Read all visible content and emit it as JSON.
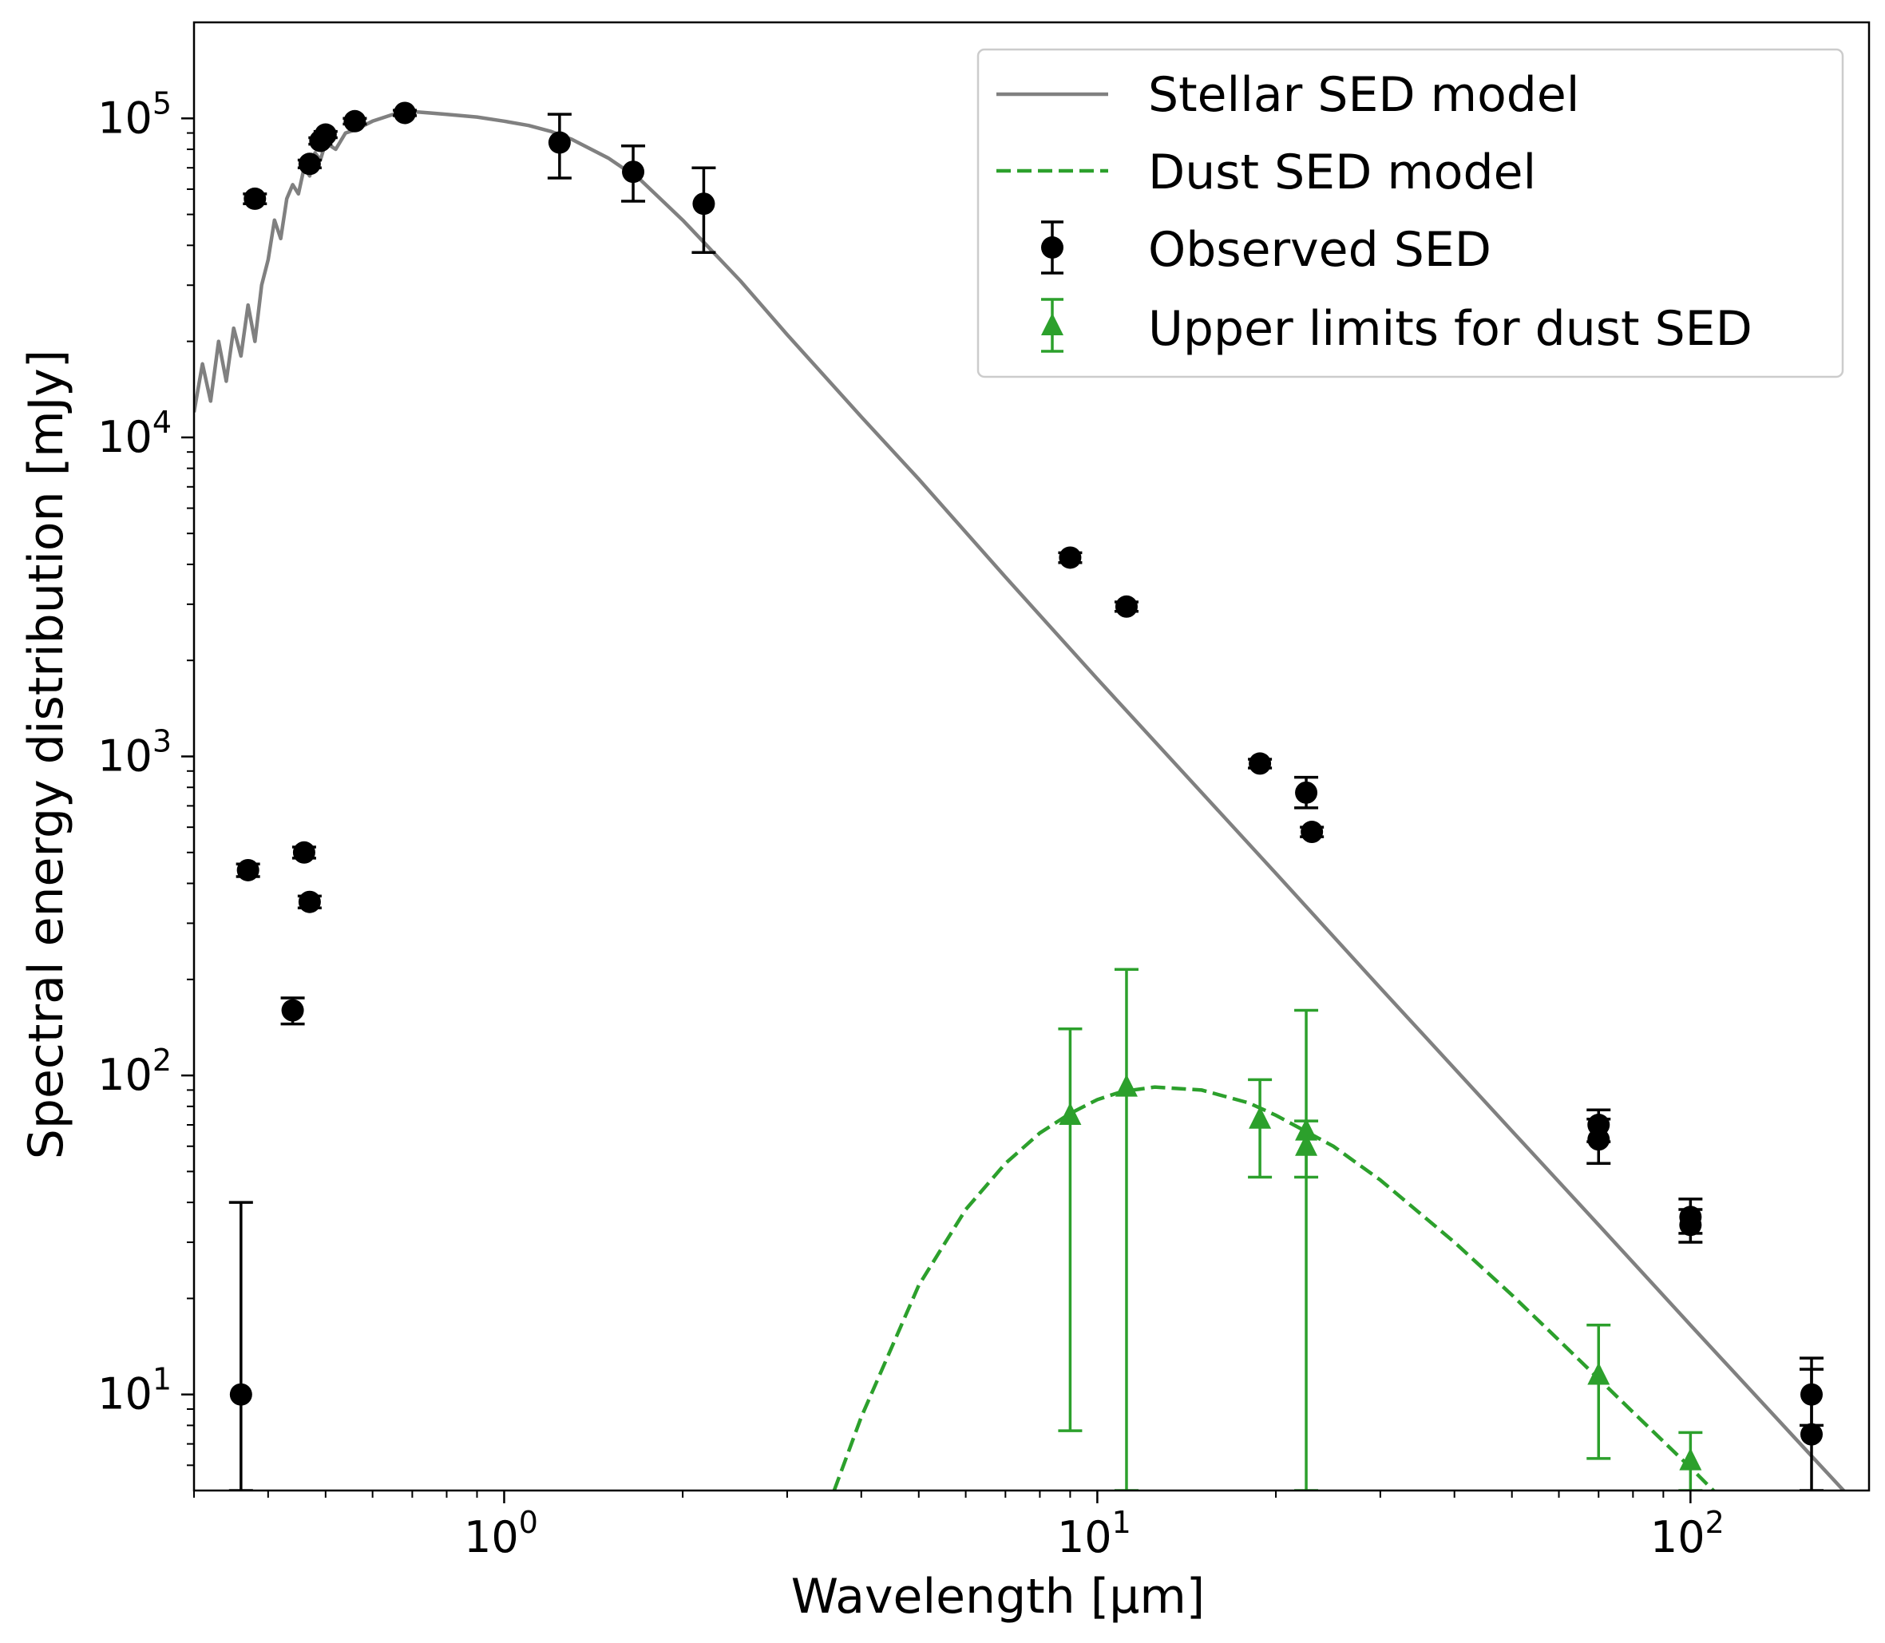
{
  "chart_data": {
    "type": "scatter",
    "title": "",
    "xlabel": "Wavelength [μm]",
    "ylabel": "Spectral energy distribution [mJy]",
    "xscale": "log",
    "yscale": "log",
    "xlim": [
      0.3,
      200
    ],
    "ylim": [
      5,
      200000
    ],
    "x_ticks": [
      {
        "value": 1,
        "base": "10",
        "exp": "0"
      },
      {
        "value": 10,
        "base": "10",
        "exp": "1"
      },
      {
        "value": 100,
        "base": "10",
        "exp": "2"
      }
    ],
    "y_ticks": [
      {
        "value": 10,
        "base": "10",
        "exp": "1"
      },
      {
        "value": 100,
        "base": "10",
        "exp": "2"
      },
      {
        "value": 1000,
        "base": "10",
        "exp": "3"
      },
      {
        "value": 10000,
        "base": "10",
        "exp": "4"
      },
      {
        "value": 100000,
        "base": "10",
        "exp": "5"
      }
    ],
    "legend": {
      "position": "top-right",
      "entries": [
        {
          "label": "Stellar SED model",
          "style": "line",
          "color": "#808080"
        },
        {
          "label": "Dust SED model",
          "style": "dashed",
          "color": "#2ca02c"
        },
        {
          "label": "Observed SED",
          "style": "circle-errorbar",
          "color": "#000000"
        },
        {
          "label": "Upper limits for dust SED",
          "style": "triangle-errorbar",
          "color": "#2ca02c"
        }
      ]
    },
    "series": [
      {
        "name": "Stellar SED model",
        "kind": "line",
        "color": "#808080",
        "x": [
          0.3,
          0.31,
          0.32,
          0.33,
          0.34,
          0.35,
          0.36,
          0.37,
          0.38,
          0.39,
          0.4,
          0.41,
          0.42,
          0.43,
          0.44,
          0.45,
          0.46,
          0.47,
          0.48,
          0.49,
          0.5,
          0.52,
          0.54,
          0.56,
          0.6,
          0.65,
          0.7,
          0.75,
          0.8,
          0.9,
          1.0,
          1.1,
          1.2,
          1.3,
          1.5,
          1.7,
          2.0,
          2.5,
          3,
          4,
          5,
          7,
          10,
          15,
          20,
          30,
          50,
          70,
          100,
          150,
          200
        ],
        "y": [
          12000,
          17000,
          13000,
          20000,
          15000,
          22000,
          18000,
          26000,
          20000,
          30000,
          36000,
          48000,
          42000,
          56000,
          62000,
          58000,
          70000,
          66000,
          78000,
          74000,
          84000,
          80000,
          90000,
          92000,
          98000,
          103000,
          105000,
          104000,
          103000,
          101000,
          98000,
          95000,
          91000,
          86000,
          75000,
          64000,
          48000,
          31000,
          21000,
          11600,
          7400,
          3650,
          1750,
          770,
          430,
          188,
          67,
          34,
          16.5,
          7.3,
          4.1
        ]
      },
      {
        "name": "Dust SED model",
        "kind": "dashed-line",
        "color": "#2ca02c",
        "x": [
          3.6,
          4,
          5,
          6,
          7,
          8,
          9,
          10,
          11,
          12.5,
          15,
          18,
          20,
          25,
          30,
          40,
          50,
          60,
          70,
          80,
          100,
          120
        ],
        "y": [
          5,
          8.5,
          22,
          38,
          53,
          66,
          76,
          84,
          89,
          92,
          90,
          82,
          75,
          60,
          47,
          30,
          20.5,
          14.8,
          11.2,
          8.8,
          5.9,
          4.2
        ]
      },
      {
        "name": "Observed SED",
        "kind": "errorbar-circle",
        "color": "#000000",
        "points": [
          {
            "x": 0.36,
            "y": 10,
            "ylo": 5,
            "yhi": 40
          },
          {
            "x": 0.37,
            "y": 440,
            "ylo": 420,
            "yhi": 460
          },
          {
            "x": 0.44,
            "y": 160,
            "ylo": 145,
            "yhi": 175
          },
          {
            "x": 0.46,
            "y": 500,
            "ylo": 480,
            "yhi": 520
          },
          {
            "x": 0.47,
            "y": 350,
            "ylo": 335,
            "yhi": 365
          },
          {
            "x": 0.38,
            "y": 56000,
            "ylo": 54000,
            "yhi": 58000
          },
          {
            "x": 0.47,
            "y": 72000,
            "ylo": 70000,
            "yhi": 74000
          },
          {
            "x": 0.49,
            "y": 85000,
            "ylo": 83000,
            "yhi": 87000
          },
          {
            "x": 0.5,
            "y": 89000,
            "ylo": 87000,
            "yhi": 91000
          },
          {
            "x": 0.56,
            "y": 98000,
            "ylo": 96000,
            "yhi": 100000
          },
          {
            "x": 0.68,
            "y": 104000,
            "ylo": 102000,
            "yhi": 106000
          },
          {
            "x": 1.24,
            "y": 84000,
            "ylo": 65000,
            "yhi": 103000
          },
          {
            "x": 1.65,
            "y": 68000,
            "ylo": 55000,
            "yhi": 82000
          },
          {
            "x": 2.17,
            "y": 54000,
            "ylo": 38000,
            "yhi": 70000
          },
          {
            "x": 9,
            "y": 4200,
            "ylo": 4050,
            "yhi": 4350
          },
          {
            "x": 11.2,
            "y": 2950,
            "ylo": 2850,
            "yhi": 3050
          },
          {
            "x": 18.8,
            "y": 950,
            "ylo": 920,
            "yhi": 980
          },
          {
            "x": 22.5,
            "y": 770,
            "ylo": 690,
            "yhi": 860
          },
          {
            "x": 23,
            "y": 580,
            "ylo": 560,
            "yhi": 600
          },
          {
            "x": 70,
            "y": 70,
            "ylo": 62,
            "yhi": 78
          },
          {
            "x": 70,
            "y": 63,
            "ylo": 53,
            "yhi": 73
          },
          {
            "x": 100,
            "y": 36,
            "ylo": 32,
            "yhi": 41
          },
          {
            "x": 100,
            "y": 34,
            "ylo": 30,
            "yhi": 38
          },
          {
            "x": 160,
            "y": 10,
            "ylo": 8,
            "yhi": 13
          },
          {
            "x": 160,
            "y": 7.5,
            "ylo": 5,
            "yhi": 12
          }
        ]
      },
      {
        "name": "Upper limits for dust SED",
        "kind": "errorbar-triangle",
        "color": "#2ca02c",
        "points": [
          {
            "x": 9,
            "y": 75,
            "ylo": 7.7,
            "yhi": 140
          },
          {
            "x": 11.2,
            "y": 92,
            "ylo": 5,
            "yhi": 215
          },
          {
            "x": 18.8,
            "y": 73,
            "ylo": 48,
            "yhi": 97
          },
          {
            "x": 22.5,
            "y": 67,
            "ylo": 48,
            "yhi": 72
          },
          {
            "x": 22.5,
            "y": 60,
            "ylo": 5,
            "yhi": 160
          },
          {
            "x": 70,
            "y": 11.5,
            "ylo": 6.3,
            "yhi": 16.5
          },
          {
            "x": 100,
            "y": 6.2,
            "ylo": 5,
            "yhi": 7.6
          }
        ]
      }
    ]
  }
}
